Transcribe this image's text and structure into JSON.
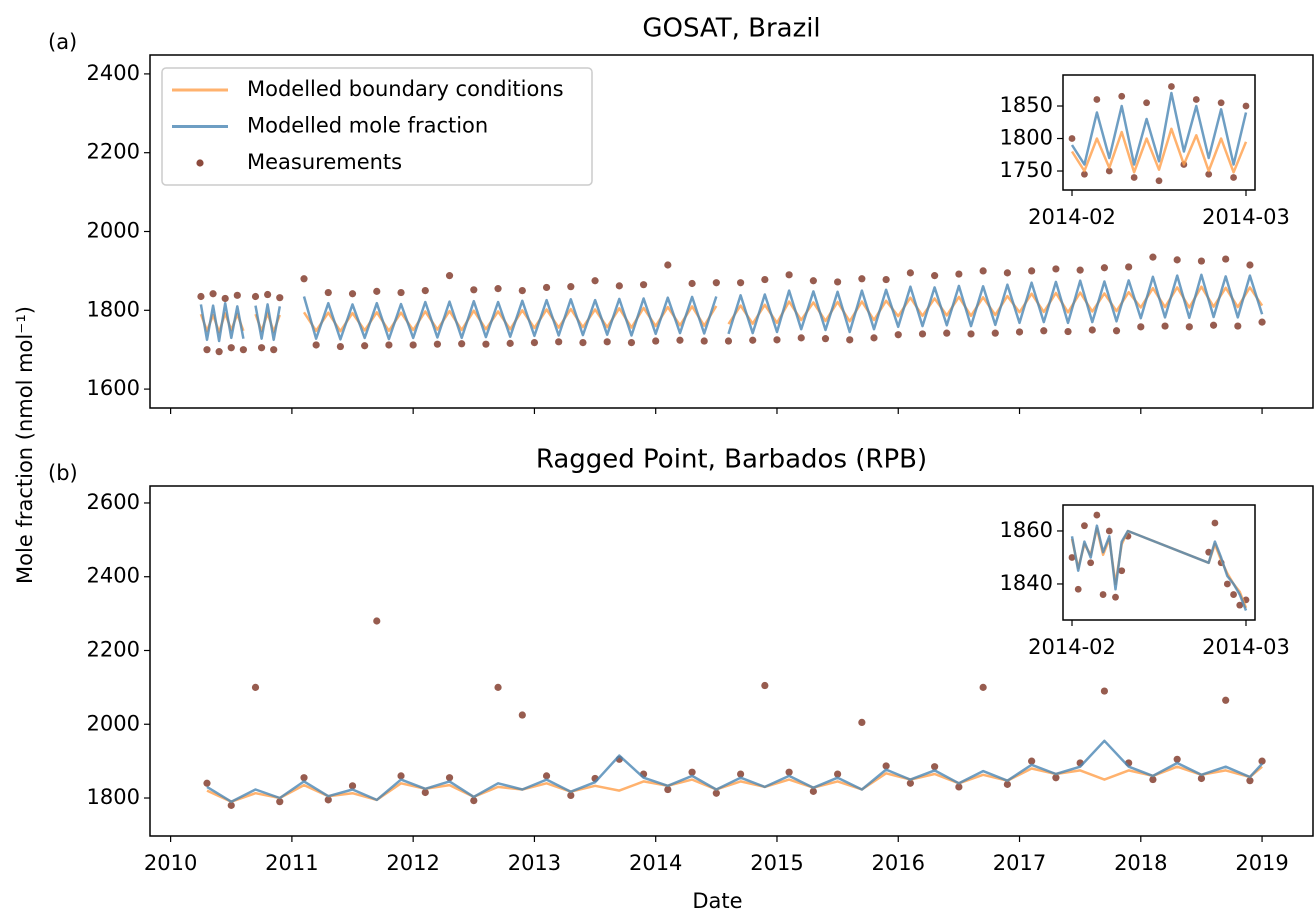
{
  "chart_data": [
    {
      "type": "line",
      "title": "GOSAT, Brazil",
      "panel_label": "(a)",
      "ylabel": "Mole fraction (nmol mol⁻¹)",
      "xlim": [
        2009.83,
        2019.42
      ],
      "xticks": [
        2010,
        2011,
        2012,
        2013,
        2014,
        2015,
        2016,
        2017,
        2018,
        2019
      ],
      "show_xtick_labels": false,
      "ylim": [
        1552,
        2448
      ],
      "yticks": [
        1600,
        1800,
        2000,
        2200,
        2400
      ],
      "legend": "upper left",
      "x": [
        2010.25,
        2010.3,
        2010.35,
        2010.4,
        2010.45,
        2010.5,
        2010.55,
        2010.6,
        2010.65,
        2010.7,
        2010.75,
        2010.8,
        2010.85,
        2010.9,
        2011.0,
        2011.1,
        2011.2,
        2011.3,
        2011.4,
        2011.5,
        2011.6,
        2011.7,
        2011.8,
        2011.9,
        2012.0,
        2012.1,
        2012.2,
        2012.3,
        2012.4,
        2012.5,
        2012.6,
        2012.7,
        2012.8,
        2012.9,
        2013.0,
        2013.1,
        2013.2,
        2013.3,
        2013.4,
        2013.5,
        2013.6,
        2013.7,
        2013.8,
        2013.9,
        2014.0,
        2014.1,
        2014.2,
        2014.3,
        2014.4,
        2014.5,
        2014.55,
        2014.6,
        2014.7,
        2014.8,
        2014.9,
        2015.0,
        2015.1,
        2015.2,
        2015.3,
        2015.4,
        2015.5,
        2015.6,
        2015.7,
        2015.8,
        2015.9,
        2016.0,
        2016.1,
        2016.2,
        2016.3,
        2016.4,
        2016.5,
        2016.6,
        2016.7,
        2016.8,
        2016.9,
        2017.0,
        2017.1,
        2017.2,
        2017.3,
        2017.4,
        2017.5,
        2017.6,
        2017.7,
        2017.8,
        2017.9,
        2018.0,
        2018.1,
        2018.2,
        2018.3,
        2018.4,
        2018.5,
        2018.6,
        2018.7,
        2018.8,
        2018.9,
        2019.0
      ],
      "series": [
        {
          "name": "Measurements",
          "type": "scatter",
          "color": "#8c4a3c",
          "values": [
            1835,
            1700,
            1842,
            1695,
            1830,
            1705,
            1838,
            1700,
            null,
            1835,
            1705,
            1840,
            1700,
            1832,
            null,
            1880,
            1712,
            1845,
            1708,
            1842,
            1710,
            1848,
            1712,
            1845,
            1712,
            1850,
            1714,
            1888,
            1715,
            1852,
            1714,
            1855,
            1716,
            1850,
            1718,
            1858,
            1720,
            1860,
            1718,
            1875,
            1720,
            1862,
            1718,
            1865,
            1722,
            1915,
            1724,
            1868,
            1722,
            1870,
            null,
            1722,
            1870,
            1724,
            1878,
            1725,
            1890,
            1730,
            1875,
            1728,
            1872,
            1725,
            1880,
            1730,
            1878,
            1738,
            1895,
            1740,
            1888,
            1742,
            1892,
            1740,
            1900,
            1742,
            1895,
            1745,
            1900,
            1748,
            1905,
            1746,
            1902,
            1750,
            1908,
            1748,
            1910,
            1758,
            1935,
            1760,
            1928,
            1758,
            1925,
            1762,
            1930,
            1760,
            1915,
            1770
          ]
        },
        {
          "name": "Modelled boundary conditions",
          "type": "line",
          "color": "#ff9f4a",
          "values": [
            1790,
            1748,
            1788,
            1745,
            1792,
            1750,
            1790,
            1748,
            null,
            1790,
            1748,
            1792,
            1746,
            1788,
            null,
            1795,
            1748,
            1794,
            1747,
            1793,
            1749,
            1795,
            1748,
            1794,
            1750,
            1797,
            1751,
            1798,
            1750,
            1799,
            1752,
            1797,
            1752,
            1800,
            1755,
            1802,
            1756,
            1803,
            1757,
            1802,
            1757,
            1805,
            1756,
            1806,
            1760,
            1808,
            1762,
            1810,
            1761,
            1811,
            null,
            1765,
            1812,
            1766,
            1814,
            1768,
            1822,
            1775,
            1820,
            1773,
            1821,
            1772,
            1822,
            1775,
            1824,
            1785,
            1832,
            1786,
            1830,
            1787,
            1834,
            1786,
            1833,
            1788,
            1836,
            1795,
            1842,
            1796,
            1844,
            1795,
            1845,
            1797,
            1843,
            1798,
            1846,
            1807,
            1856,
            1808,
            1858,
            1807,
            1860,
            1809,
            1857,
            1808,
            1858,
            1812
          ]
        },
        {
          "name": "Modelled mole fraction",
          "type": "line",
          "color": "#4a86b4",
          "values": [
            1815,
            1725,
            1812,
            1722,
            1818,
            1730,
            1810,
            1728,
            null,
            1812,
            1728,
            1815,
            1725,
            1810,
            null,
            1835,
            1728,
            1818,
            1726,
            1815,
            1730,
            1818,
            1727,
            1816,
            1730,
            1821,
            1731,
            1822,
            1730,
            1823,
            1732,
            1821,
            1733,
            1824,
            1735,
            1826,
            1736,
            1828,
            1737,
            1826,
            1738,
            1829,
            1736,
            1830,
            1740,
            1832,
            1742,
            1834,
            1741,
            1835,
            null,
            1740,
            1838,
            1742,
            1840,
            1745,
            1850,
            1752,
            1848,
            1750,
            1847,
            1745,
            1850,
            1752,
            1852,
            1758,
            1860,
            1760,
            1858,
            1762,
            1862,
            1760,
            1861,
            1763,
            1865,
            1768,
            1870,
            1770,
            1872,
            1768,
            1875,
            1770,
            1873,
            1772,
            1876,
            1780,
            1885,
            1782,
            1888,
            1781,
            1890,
            1783,
            1886,
            1782,
            1888,
            1790
          ]
        }
      ]
    },
    {
      "type": "line",
      "title": "Ragged Point, Barbados (RPB)",
      "panel_label": "(b)",
      "xlabel": "Date",
      "xlim": [
        2009.83,
        2019.42
      ],
      "xticks": [
        2010,
        2011,
        2012,
        2013,
        2014,
        2015,
        2016,
        2017,
        2018,
        2019
      ],
      "show_xtick_labels": true,
      "ylim": [
        1697,
        2646
      ],
      "yticks": [
        1800,
        2000,
        2200,
        2400,
        2600
      ],
      "x": [
        2010.3,
        2010.5,
        2010.7,
        2010.9,
        2011.1,
        2011.3,
        2011.5,
        2011.7,
        2011.9,
        2012.1,
        2012.3,
        2012.5,
        2012.7,
        2012.9,
        2013.1,
        2013.3,
        2013.5,
        2013.7,
        2013.9,
        2014.1,
        2014.3,
        2014.5,
        2014.7,
        2014.9,
        2015.1,
        2015.3,
        2015.5,
        2015.7,
        2015.9,
        2016.1,
        2016.3,
        2016.5,
        2016.7,
        2016.9,
        2017.1,
        2017.3,
        2017.5,
        2017.7,
        2017.9,
        2018.1,
        2018.3,
        2018.5,
        2018.7,
        2018.9,
        2019.0
      ],
      "series": [
        {
          "name": "Measurements",
          "type": "scatter",
          "color": "#8c4a3c",
          "values": [
            1840,
            1780,
            2100,
            1790,
            1855,
            1795,
            1833,
            2280,
            1860,
            1815,
            1855,
            1793,
            2100,
            2025,
            1860,
            1807,
            1853,
            1905,
            1865,
            1823,
            1870,
            1813,
            1865,
            2105,
            1870,
            1818,
            1865,
            2005,
            1887,
            1840,
            1885,
            1830,
            2100,
            1837,
            1900,
            1855,
            1895,
            2090,
            1895,
            1850,
            1905,
            1853,
            2065,
            1847,
            1900
          ]
        },
        {
          "name": "Modelled boundary conditions",
          "type": "line",
          "color": "#ff9f4a",
          "values": [
            1820,
            1790,
            1813,
            1800,
            1835,
            1805,
            1813,
            1795,
            1840,
            1825,
            1835,
            1803,
            1830,
            1823,
            1840,
            1817,
            1833,
            1820,
            1845,
            1833,
            1850,
            1823,
            1845,
            1830,
            1850,
            1828,
            1845,
            1823,
            1867,
            1850,
            1865,
            1840,
            1863,
            1847,
            1880,
            1865,
            1875,
            1850,
            1875,
            1860,
            1885,
            1863,
            1875,
            1857,
            1885
          ]
        },
        {
          "name": "Modelled mole fraction",
          "type": "line",
          "color": "#4a86b4",
          "values": [
            1830,
            1790,
            1823,
            1800,
            1845,
            1805,
            1823,
            1795,
            1850,
            1825,
            1845,
            1803,
            1840,
            1823,
            1850,
            1817,
            1843,
            1915,
            1855,
            1833,
            1860,
            1823,
            1855,
            1830,
            1860,
            1828,
            1855,
            1823,
            1877,
            1850,
            1875,
            1840,
            1873,
            1847,
            1890,
            1865,
            1885,
            1955,
            1885,
            1860,
            1895,
            1863,
            1885,
            1857,
            1893
          ]
        }
      ]
    },
    {
      "type": "line",
      "xlim": [
        -1.45,
        29.45
      ],
      "xticks": [
        {
          "value": 0,
          "label": "2014-02"
        },
        {
          "value": 28,
          "label": "2014-03"
        }
      ],
      "show_xtick_labels": true,
      "ylim": [
        1720.8,
        1897.7
      ],
      "yticks": [
        1750,
        1800,
        1850
      ],
      "x": [
        0,
        2,
        4,
        6,
        8,
        10,
        12,
        14,
        16,
        18,
        20,
        22,
        24,
        26,
        28
      ],
      "series": [
        {
          "name": "Measurements",
          "type": "scatter",
          "color": "#8c4a3c",
          "values": [
            1800,
            1745,
            1860,
            1750,
            1865,
            1740,
            1855,
            1735,
            1880,
            1760,
            1860,
            1745,
            1855,
            1740,
            1850
          ]
        },
        {
          "name": "Modelled boundary conditions",
          "type": "line",
          "color": "#ff9f4a",
          "values": [
            1780,
            1750,
            1800,
            1755,
            1810,
            1748,
            1800,
            1752,
            1815,
            1760,
            1805,
            1750,
            1800,
            1748,
            1795
          ]
        },
        {
          "name": "Modelled mole fraction",
          "type": "line",
          "color": "#4a86b4",
          "values": [
            1790,
            1760,
            1840,
            1770,
            1850,
            1760,
            1830,
            1765,
            1870,
            1780,
            1850,
            1770,
            1845,
            1760,
            1840
          ]
        }
      ]
    },
    {
      "type": "line",
      "xlim": [
        -1.45,
        29.45
      ],
      "xticks": [
        {
          "value": 0,
          "label": "2014-02"
        },
        {
          "value": 28,
          "label": "2014-03"
        }
      ],
      "show_xtick_labels": true,
      "ylim": [
        1826.4,
        1869.8
      ],
      "yticks": [
        1840,
        1860
      ],
      "x": [
        0,
        1,
        2,
        3,
        4,
        5,
        6,
        7,
        8,
        9,
        22,
        23,
        24,
        25,
        26,
        27,
        28
      ],
      "series": [
        {
          "name": "Measurements",
          "type": "scatter",
          "color": "#8c4a3c",
          "values": [
            1850,
            1838,
            1862,
            1848,
            1866,
            1836,
            1860,
            1835,
            1845,
            1858,
            1852,
            1863,
            1848,
            1840,
            1836,
            1832,
            1834
          ]
        },
        {
          "name": "Modelled boundary conditions",
          "type": "line",
          "color": "#ff9f4a",
          "values": [
            1857,
            1846,
            1855,
            1851,
            1861,
            1851,
            1857,
            1840,
            1855,
            1860,
            1848,
            1855,
            1849,
            1844,
            1840,
            1837,
            1831
          ]
        },
        {
          "name": "Modelled mole fraction",
          "type": "line",
          "color": "#4a86b4",
          "values": [
            1858,
            1845,
            1856,
            1850,
            1862,
            1852,
            1858,
            1838,
            1856,
            1860,
            1848,
            1856,
            1850,
            1843,
            1840,
            1836,
            1830
          ]
        }
      ]
    }
  ]
}
